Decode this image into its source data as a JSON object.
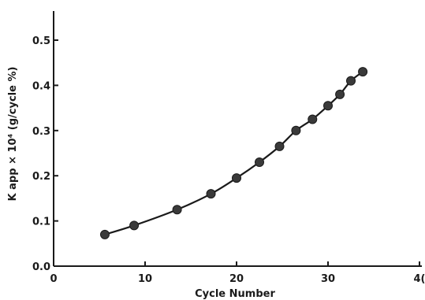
{
  "chart_data": {
    "type": "line",
    "title": "",
    "xlabel": "Cycle Number",
    "ylabel": "K app × 10⁴ (g/cycle %)",
    "xlim": [
      0,
      40
    ],
    "ylim": [
      0,
      0.55
    ],
    "x_ticks": [
      "0",
      "10",
      "20",
      "30",
      "4("
    ],
    "y_ticks": [
      "0.0",
      "0.1",
      "0.2",
      "0.3",
      "0.4",
      "0.5"
    ],
    "grid": false,
    "legend": "none",
    "colors": {
      "ink": "#1a1a1a",
      "marker": "#3a3a3a"
    },
    "series": [
      {
        "x": [
          5.6,
          8.8,
          13.5,
          17.2,
          20.0,
          22.5,
          24.7,
          26.5,
          28.3,
          30.0,
          31.3,
          32.5,
          33.8
        ],
        "y": [
          0.07,
          0.09,
          0.125,
          0.16,
          0.195,
          0.23,
          0.265,
          0.3,
          0.325,
          0.355,
          0.38,
          0.41,
          0.43
        ]
      }
    ]
  }
}
